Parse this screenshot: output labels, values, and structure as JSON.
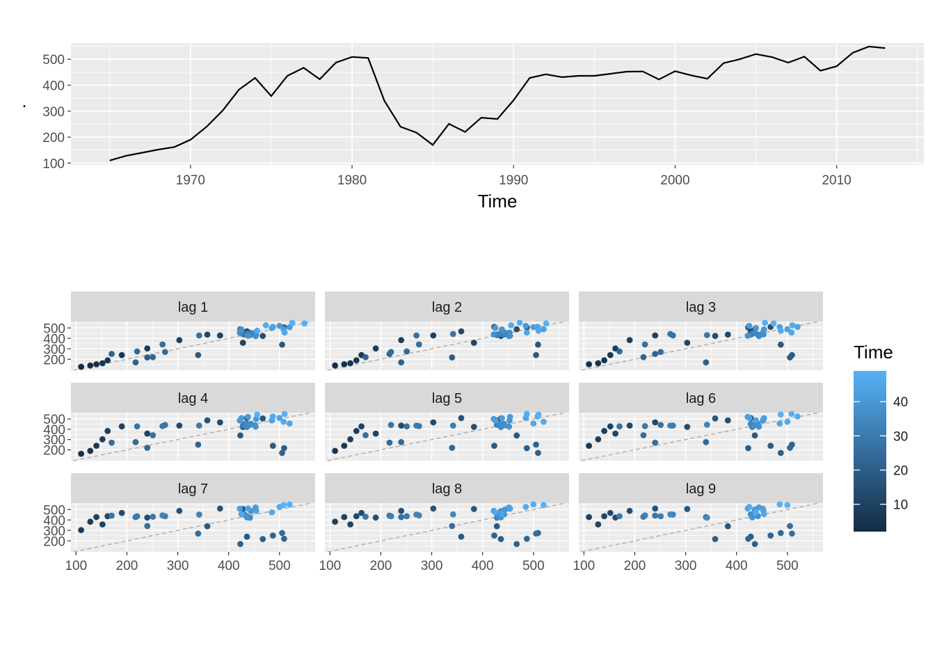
{
  "colors": {
    "panel_bg": "#ebebeb",
    "grid_major": "#ffffff",
    "strip_bg": "#d9d9d9",
    "line": "#000000",
    "tick_text": "#4d4d4d",
    "ref_line": "#b3b3b3",
    "gradient_low": "#132b43",
    "gradient_high": "#56b1f7"
  },
  "chart_data": [
    {
      "type": "line",
      "xlabel": "Time",
      "ylabel": ".",
      "xlim": [
        1962.6,
        2015.4
      ],
      "ylim": [
        93,
        562
      ],
      "x_ticks": [
        1970,
        1980,
        1990,
        2000,
        2010
      ],
      "y_ticks": [
        100,
        200,
        300,
        400,
        500
      ],
      "grid": true,
      "x": [
        1965,
        1966,
        1967,
        1968,
        1969,
        1970,
        1971,
        1972,
        1973,
        1974,
        1975,
        1976,
        1977,
        1978,
        1979,
        1980,
        1981,
        1982,
        1983,
        1984,
        1985,
        1986,
        1987,
        1988,
        1989,
        1990,
        1991,
        1992,
        1993,
        1994,
        1995,
        1996,
        1997,
        1998,
        1999,
        2000,
        2001,
        2002,
        2003,
        2004,
        2005,
        2006,
        2007,
        2008,
        2009,
        2010,
        2011,
        2012,
        2013
      ],
      "y": [
        110,
        128,
        140,
        152,
        162,
        190,
        240,
        303,
        383,
        428,
        358,
        436,
        467,
        423,
        487,
        509,
        505,
        340,
        240,
        217,
        170,
        251,
        220,
        275,
        270,
        342,
        428,
        442,
        431,
        436,
        436,
        444,
        452,
        453,
        422,
        454,
        438,
        425,
        485,
        500,
        520,
        508,
        487,
        510,
        456,
        473,
        525,
        549,
        543
      ]
    },
    {
      "type": "scatter",
      "description_free": true,
      "legend": {
        "title": "Time",
        "ticks": [
          10,
          20,
          30,
          40
        ],
        "range": [
          2,
          49
        ],
        "placement": "right"
      },
      "x_ticks": [
        100,
        200,
        300,
        400,
        500
      ],
      "y_ticks": [
        200,
        300,
        400,
        500
      ],
      "xlim": [
        90,
        570
      ],
      "ylim": [
        95,
        562
      ],
      "reference_line": "y = x",
      "facets": [
        {
          "label": "lag 1",
          "lag": 1
        },
        {
          "label": "lag 2",
          "lag": 2
        },
        {
          "label": "lag 3",
          "lag": 3
        },
        {
          "label": "lag 4",
          "lag": 4
        },
        {
          "label": "lag 5",
          "lag": 5
        },
        {
          "label": "lag 6",
          "lag": 6
        },
        {
          "label": "lag 7",
          "lag": 7
        },
        {
          "label": "lag 8",
          "lag": 8
        },
        {
          "label": "lag 9",
          "lag": 9
        }
      ]
    }
  ]
}
